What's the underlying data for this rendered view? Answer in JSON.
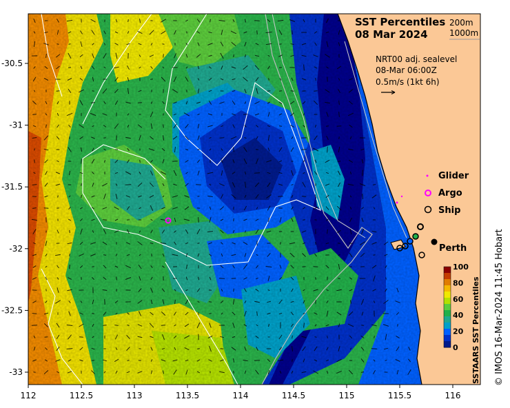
{
  "title_line1": "SST Percentiles",
  "title_line2": "08 Mar 2024",
  "isobaths": {
    "shallow": "200m",
    "deep": "1000m"
  },
  "current_info": {
    "line1": "NRT00 adj. sealevel",
    "line2": "08-Mar 06:00Z",
    "line3": "0.5m/s (1kt 6h)"
  },
  "legend": {
    "glider": "Glider",
    "argo": "Argo",
    "ship": "Ship"
  },
  "place": "Perth",
  "colorbar": {
    "title": "SSTAARS SST Percentiles",
    "ticks": [
      "100",
      "80",
      "60",
      "40",
      "20",
      "0"
    ],
    "colors": [
      "#8b0000",
      "#c43c00",
      "#e07c00",
      "#f5b800",
      "#f0e800",
      "#b4e000",
      "#5ccc3c",
      "#22b04a",
      "#1fa890",
      "#00a0c8",
      "#0060ff",
      "#0030c8",
      "#001a8c"
    ]
  },
  "x_ticks": [
    "112",
    "112.5",
    "113",
    "113.5",
    "114",
    "114.5",
    "115",
    "115.5",
    "116"
  ],
  "y_ticks": [
    "-30.5",
    "-31",
    "-31.5",
    "-32",
    "-32.5",
    "-33"
  ],
  "credit": "© IMOS 16-Mar-2024 11:45 Hobart",
  "map_colors": {
    "land": "#fbc896",
    "deep_blue": "#00008b"
  }
}
